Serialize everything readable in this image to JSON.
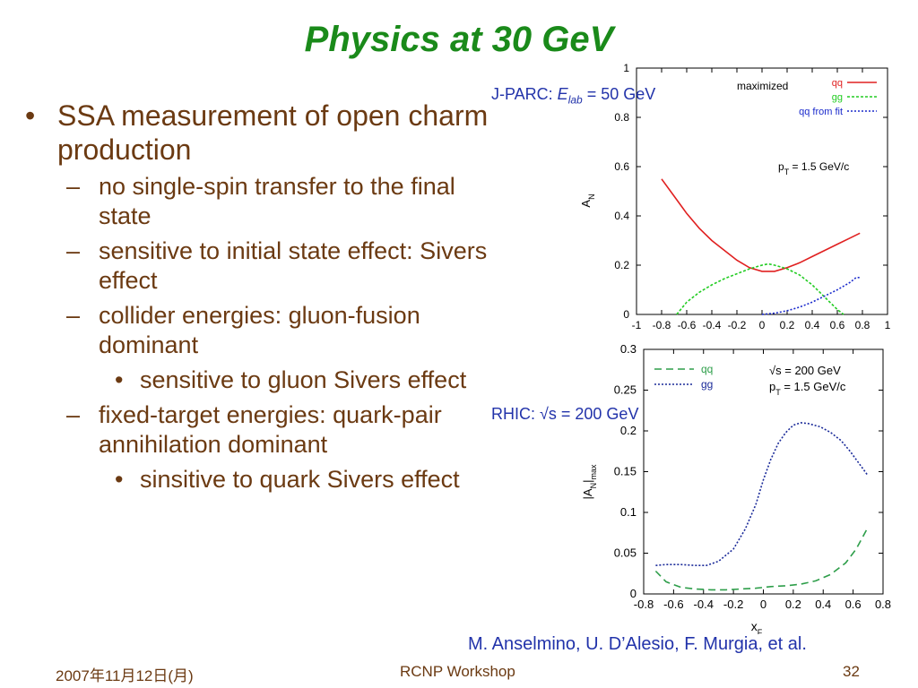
{
  "slide": {
    "title": "Physics at 30 GeV",
    "bullets": [
      {
        "level": 1,
        "marker": "•",
        "text": "SSA measurement of open charm production"
      },
      {
        "level": 2,
        "marker": "–",
        "text": "no single-spin transfer to the final state"
      },
      {
        "level": 2,
        "marker": "–",
        "text": "sensitive to initial state effect: Sivers effect"
      },
      {
        "level": 2,
        "marker": "–",
        "text": "collider energies: gluon-fusion dominant"
      },
      {
        "level": 3,
        "marker": "•",
        "text": "sensitive to gluon Sivers effect"
      },
      {
        "level": 2,
        "marker": "–",
        "text": "fixed-target energies: quark-pair annihilation dominant"
      },
      {
        "level": 3,
        "marker": "•",
        "text": "sinsitive to quark Sivers effect"
      }
    ],
    "callout_jparc": "J-PARC: ",
    "callout_jparc_e": "E",
    "callout_jparc_sub": "lab",
    "callout_jparc_rest": " = 50 GeV",
    "callout_rhic": "RHIC: √s = 200 GeV",
    "citation": "M. Anselmino, U. D’Alesio, F. Murgia, et al.",
    "footer": {
      "date": "2007年11月12日(月)",
      "event": "RCNP Workshop",
      "page": "32"
    }
  },
  "colors": {
    "title": "#1a8a1a",
    "text": "#6b3a12",
    "callout": "#2233aa"
  },
  "chart_data": [
    {
      "type": "line",
      "ylabel": "A",
      "ylabel_sub": "N",
      "xlim": [
        -1,
        1
      ],
      "ylim": [
        0,
        1
      ],
      "x_ticks": [
        "-1",
        "-0.8",
        "-0.6",
        "-0.4",
        "-0.2",
        "0",
        "0.2",
        "0.4",
        "0.6",
        "0.8",
        "1"
      ],
      "y_ticks": [
        "0",
        "0.2",
        "0.4",
        "0.6",
        "0.8",
        "1"
      ],
      "legend_title": "maximized",
      "annotation": "p",
      "annotation_sub": "T",
      "annotation_rest": " = 1.5 GeV/c",
      "series": [
        {
          "name": "qq",
          "color": "#e02020",
          "dash": "",
          "x": [
            -0.8,
            -0.7,
            -0.6,
            -0.5,
            -0.4,
            -0.3,
            -0.2,
            -0.1,
            0.0,
            0.1,
            0.2,
            0.3,
            0.4,
            0.5,
            0.6,
            0.7,
            0.78
          ],
          "y": [
            0.55,
            0.48,
            0.41,
            0.35,
            0.3,
            0.26,
            0.22,
            0.19,
            0.175,
            0.175,
            0.19,
            0.21,
            0.235,
            0.26,
            0.285,
            0.31,
            0.33
          ]
        },
        {
          "name": "gg",
          "color": "#22cc22",
          "dash": "3,2",
          "x": [
            -0.68,
            -0.6,
            -0.5,
            -0.4,
            -0.3,
            -0.2,
            -0.1,
            0.0,
            0.05,
            0.1,
            0.2,
            0.3,
            0.4,
            0.5,
            0.6,
            0.65
          ],
          "y": [
            0.0,
            0.05,
            0.09,
            0.12,
            0.145,
            0.165,
            0.185,
            0.2,
            0.205,
            0.2,
            0.185,
            0.16,
            0.12,
            0.07,
            0.02,
            0.0
          ]
        },
        {
          "name": "qq from fit",
          "color": "#1a2acc",
          "dash": "2,2",
          "x": [
            0.0,
            0.1,
            0.2,
            0.3,
            0.4,
            0.5,
            0.6,
            0.7,
            0.75,
            0.78
          ],
          "y": [
            0.0,
            0.005,
            0.015,
            0.03,
            0.05,
            0.075,
            0.1,
            0.13,
            0.15,
            0.15
          ]
        }
      ]
    },
    {
      "type": "line",
      "xlabel": "x",
      "xlabel_sub": "F",
      "ylabel": "|A",
      "ylabel_sub": "N",
      "ylabel_rest": "|",
      "ylabel_sub2": "max",
      "xlim": [
        -0.8,
        0.8
      ],
      "ylim": [
        0,
        0.3
      ],
      "x_ticks": [
        "-0.8",
        "-0.6",
        "-0.4",
        "-0.2",
        "0",
        "0.2",
        "0.4",
        "0.6",
        "0.8"
      ],
      "y_ticks": [
        "0",
        "0.05",
        "0.1",
        "0.15",
        "0.2",
        "0.25",
        "0.3"
      ],
      "annotation1": "√s = 200 GeV",
      "annotation2": "p",
      "annotation2_sub": "T",
      "annotation2_rest": " = 1.5 GeV/c",
      "series": [
        {
          "name": "qq",
          "color": "#2e9e4a",
          "dash": "8,5",
          "x": [
            -0.72,
            -0.65,
            -0.55,
            -0.45,
            -0.35,
            -0.25,
            -0.15,
            -0.05,
            0.05,
            0.15,
            0.25,
            0.35,
            0.45,
            0.55,
            0.62,
            0.7
          ],
          "y": [
            0.028,
            0.015,
            0.008,
            0.006,
            0.005,
            0.005,
            0.006,
            0.007,
            0.009,
            0.01,
            0.012,
            0.016,
            0.024,
            0.038,
            0.055,
            0.082
          ]
        },
        {
          "name": "gg",
          "color": "#1a2a99",
          "dash": "2,2",
          "x": [
            -0.72,
            -0.65,
            -0.55,
            -0.45,
            -0.38,
            -0.3,
            -0.2,
            -0.12,
            -0.05,
            0.0,
            0.05,
            0.1,
            0.15,
            0.2,
            0.25,
            0.3,
            0.38,
            0.45,
            0.52,
            0.58,
            0.64,
            0.7
          ],
          "y": [
            0.035,
            0.036,
            0.036,
            0.035,
            0.035,
            0.04,
            0.055,
            0.08,
            0.11,
            0.14,
            0.165,
            0.185,
            0.198,
            0.207,
            0.21,
            0.209,
            0.205,
            0.198,
            0.188,
            0.175,
            0.16,
            0.145
          ]
        }
      ]
    }
  ]
}
